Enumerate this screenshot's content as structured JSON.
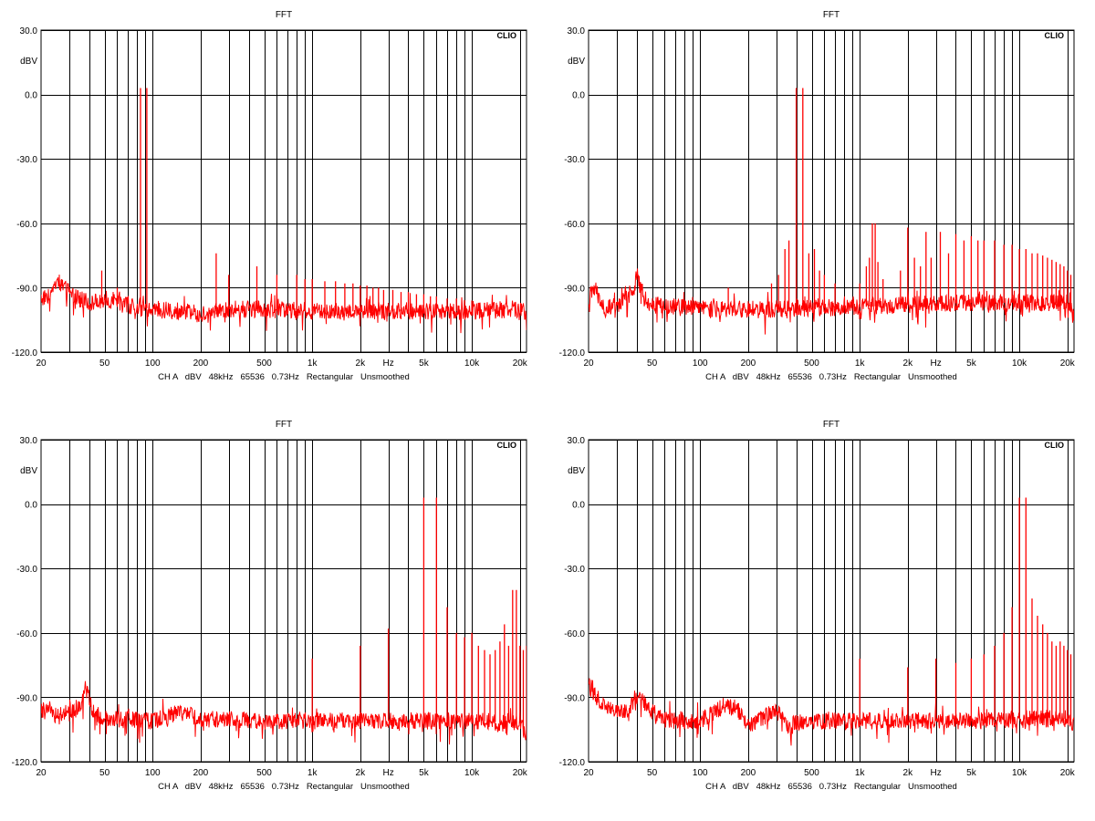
{
  "colors": {
    "trace": "#ff0000",
    "grid": "#000000",
    "background": "#ffffff"
  },
  "chart_data": [
    {
      "type": "line",
      "title": "FFT",
      "brand": "CLIO",
      "ylabel": "dBV",
      "xlabel": "Hz",
      "footer": "CH A   dBV   48kHz   65536   0.73Hz   Rectangular   Unsmoothed",
      "x_scale": "log",
      "xlim": [
        20,
        22000
      ],
      "ylim": [
        -120,
        30
      ],
      "grid": true,
      "y_ticks": [
        "30.0",
        "0.0",
        "-30.0",
        "-60.0",
        "-90.0",
        "-120.0"
      ],
      "x_ticks": [
        "20",
        "50",
        "100",
        "200",
        "500",
        "1k",
        "2k",
        "Hz",
        "5k",
        "10k",
        "20k"
      ],
      "floor_db": -101,
      "baseline_pts": [
        [
          20,
          -95
        ],
        [
          23,
          -93
        ],
        [
          25,
          -86
        ],
        [
          28,
          -90
        ],
        [
          32,
          -94
        ],
        [
          40,
          -97
        ],
        [
          50,
          -96
        ],
        [
          80,
          -99
        ],
        [
          200,
          -102
        ],
        [
          300,
          -100
        ],
        [
          500,
          -100
        ],
        [
          1000,
          -101
        ],
        [
          2000,
          -101
        ],
        [
          5000,
          -101
        ],
        [
          10000,
          -101
        ],
        [
          18000,
          -100
        ],
        [
          21000,
          -101
        ],
        [
          22000,
          -106
        ]
      ],
      "peaks": [
        [
          48,
          -82
        ],
        [
          60,
          -90
        ],
        [
          84,
          3
        ],
        [
          92,
          3
        ],
        [
          250,
          -74
        ],
        [
          300,
          -84
        ],
        [
          450,
          -80
        ],
        [
          600,
          -84
        ],
        [
          800,
          -84
        ],
        [
          900,
          -86
        ],
        [
          1000,
          -86
        ],
        [
          1200,
          -87
        ],
        [
          1400,
          -87
        ],
        [
          1600,
          -88
        ],
        [
          1800,
          -88
        ],
        [
          2000,
          -89
        ],
        [
          2200,
          -89
        ],
        [
          2400,
          -90
        ],
        [
          2600,
          -90
        ],
        [
          2800,
          -91
        ],
        [
          3200,
          -91
        ],
        [
          3600,
          -92
        ],
        [
          4000,
          -92
        ],
        [
          4500,
          -93
        ],
        [
          5000,
          -93
        ],
        [
          5500,
          -94
        ],
        [
          6000,
          -94
        ],
        [
          7000,
          -95
        ],
        [
          8000,
          -95
        ],
        [
          9000,
          -96
        ],
        [
          10000,
          -96
        ],
        [
          11000,
          -97
        ],
        [
          12000,
          -97
        ],
        [
          13000,
          -98
        ]
      ]
    },
    {
      "type": "line",
      "title": "FFT",
      "brand": "CLIO",
      "ylabel": "dBV",
      "xlabel": "Hz",
      "footer": "CH A   dBV   48kHz   65536   0.73Hz   Rectangular   Unsmoothed",
      "x_scale": "log",
      "xlim": [
        20,
        22000
      ],
      "ylim": [
        -120,
        30
      ],
      "grid": true,
      "y_ticks": [
        "30.0",
        "0.0",
        "-30.0",
        "-60.0",
        "-90.0",
        "-120.0"
      ],
      "x_ticks": [
        "20",
        "50",
        "100",
        "200",
        "500",
        "1k",
        "2k",
        "Hz",
        "5k",
        "10k",
        "20k"
      ],
      "floor_db": -101,
      "baseline_pts": [
        [
          20,
          -95
        ],
        [
          22,
          -90
        ],
        [
          25,
          -100
        ],
        [
          30,
          -98
        ],
        [
          38,
          -92
        ],
        [
          40,
          -85
        ],
        [
          45,
          -95
        ],
        [
          50,
          -98
        ],
        [
          100,
          -100
        ],
        [
          300,
          -100
        ],
        [
          1000,
          -99
        ],
        [
          2000,
          -98
        ],
        [
          5000,
          -97
        ],
        [
          10000,
          -97
        ],
        [
          20000,
          -97
        ],
        [
          22000,
          -104
        ]
      ],
      "peaks": [
        [
          150,
          -90
        ],
        [
          280,
          -88
        ],
        [
          310,
          -84
        ],
        [
          340,
          -72
        ],
        [
          360,
          -68
        ],
        [
          400,
          3
        ],
        [
          440,
          3
        ],
        [
          480,
          -74
        ],
        [
          520,
          -72
        ],
        [
          560,
          -82
        ],
        [
          600,
          -84
        ],
        [
          700,
          -88
        ],
        [
          1000,
          -88
        ],
        [
          1100,
          -80
        ],
        [
          1150,
          -76
        ],
        [
          1200,
          -60
        ],
        [
          1250,
          -60
        ],
        [
          1300,
          -78
        ],
        [
          1400,
          -86
        ],
        [
          1800,
          -82
        ],
        [
          2000,
          -62
        ],
        [
          2200,
          -76
        ],
        [
          2400,
          -80
        ],
        [
          2600,
          -64
        ],
        [
          2800,
          -76
        ],
        [
          3200,
          -64
        ],
        [
          3600,
          -74
        ],
        [
          4000,
          -65
        ],
        [
          4500,
          -68
        ],
        [
          5000,
          -66
        ],
        [
          5500,
          -68
        ],
        [
          6000,
          -68
        ],
        [
          7000,
          -68
        ],
        [
          8000,
          -70
        ],
        [
          9000,
          -70
        ],
        [
          10000,
          -72
        ],
        [
          11000,
          -72
        ],
        [
          12000,
          -74
        ],
        [
          13000,
          -74
        ],
        [
          14000,
          -75
        ],
        [
          15000,
          -76
        ],
        [
          16000,
          -77
        ],
        [
          17000,
          -78
        ],
        [
          18000,
          -79
        ],
        [
          19000,
          -80
        ],
        [
          20000,
          -82
        ],
        [
          21000,
          -84
        ]
      ]
    },
    {
      "type": "line",
      "title": "FFT",
      "brand": "CLIO",
      "ylabel": "dBV",
      "xlabel": "Hz",
      "footer": "CH A   dBV   48kHz   65536   0.73Hz   Rectangular   Unsmoothed",
      "x_scale": "log",
      "xlim": [
        20,
        22000
      ],
      "ylim": [
        -120,
        30
      ],
      "grid": true,
      "y_ticks": [
        "30.0",
        "0.0",
        "-30.0",
        "-60.0",
        "-90.0",
        "-120.0"
      ],
      "x_ticks": [
        "20",
        "50",
        "100",
        "200",
        "500",
        "1k",
        "2k",
        "Hz",
        "5k",
        "10k",
        "20k"
      ],
      "floor_db": -101,
      "baseline_pts": [
        [
          20,
          -96
        ],
        [
          25,
          -98
        ],
        [
          30,
          -96
        ],
        [
          35,
          -94
        ],
        [
          38,
          -86
        ],
        [
          42,
          -96
        ],
        [
          50,
          -100
        ],
        [
          100,
          -101
        ],
        [
          150,
          -97
        ],
        [
          200,
          -100
        ],
        [
          500,
          -101
        ],
        [
          1000,
          -101
        ],
        [
          5000,
          -101
        ],
        [
          10000,
          -101
        ],
        [
          20000,
          -102
        ],
        [
          22000,
          -107
        ]
      ],
      "peaks": [
        [
          1000,
          -72
        ],
        [
          2000,
          -66
        ],
        [
          3000,
          -58
        ],
        [
          5000,
          3
        ],
        [
          6000,
          3
        ],
        [
          7000,
          -48
        ],
        [
          8000,
          -60
        ],
        [
          9000,
          -62
        ],
        [
          10000,
          -60
        ],
        [
          11000,
          -66
        ],
        [
          12000,
          -68
        ],
        [
          13000,
          -70
        ],
        [
          14000,
          -68
        ],
        [
          15000,
          -64
        ],
        [
          16000,
          -56
        ],
        [
          17000,
          -66
        ],
        [
          18000,
          -40
        ],
        [
          19000,
          -40
        ],
        [
          20000,
          -66
        ],
        [
          21000,
          -68
        ],
        [
          22000,
          -66
        ]
      ]
    },
    {
      "type": "line",
      "title": "FFT",
      "brand": "CLIO",
      "ylabel": "dBV",
      "xlabel": "Hz",
      "footer": "CH A   dBV   48kHz   65536   0.73Hz   Rectangular   Unsmoothed",
      "x_scale": "log",
      "xlim": [
        20,
        22000
      ],
      "ylim": [
        -120,
        30
      ],
      "grid": true,
      "y_ticks": [
        "30.0",
        "0.0",
        "-30.0",
        "-60.0",
        "-90.0",
        "-120.0"
      ],
      "x_ticks": [
        "20",
        "50",
        "100",
        "200",
        "500",
        "1k",
        "2k",
        "Hz",
        "5k",
        "10k",
        "20k"
      ],
      "floor_db": -101,
      "baseline_pts": [
        [
          20,
          -84
        ],
        [
          21,
          -88
        ],
        [
          24,
          -92
        ],
        [
          28,
          -96
        ],
        [
          35,
          -96
        ],
        [
          42,
          -87
        ],
        [
          47,
          -96
        ],
        [
          60,
          -100
        ],
        [
          100,
          -101
        ],
        [
          140,
          -94
        ],
        [
          170,
          -95
        ],
        [
          200,
          -104
        ],
        [
          300,
          -96
        ],
        [
          350,
          -103
        ],
        [
          500,
          -101
        ],
        [
          1000,
          -101
        ],
        [
          5000,
          -101
        ],
        [
          10000,
          -100
        ],
        [
          20000,
          -100
        ],
        [
          22000,
          -104
        ]
      ],
      "peaks": [
        [
          1000,
          -72
        ],
        [
          2000,
          -76
        ],
        [
          3000,
          -72
        ],
        [
          4000,
          -74
        ],
        [
          5000,
          -72
        ],
        [
          6000,
          -70
        ],
        [
          7000,
          -66
        ],
        [
          8000,
          -60
        ],
        [
          9000,
          -48
        ],
        [
          10000,
          3
        ],
        [
          11000,
          3
        ],
        [
          12000,
          -44
        ],
        [
          13000,
          -52
        ],
        [
          14000,
          -56
        ],
        [
          15000,
          -60
        ],
        [
          16000,
          -64
        ],
        [
          17000,
          -66
        ],
        [
          18000,
          -64
        ],
        [
          19000,
          -66
        ],
        [
          20000,
          -68
        ],
        [
          21000,
          -70
        ]
      ]
    }
  ]
}
